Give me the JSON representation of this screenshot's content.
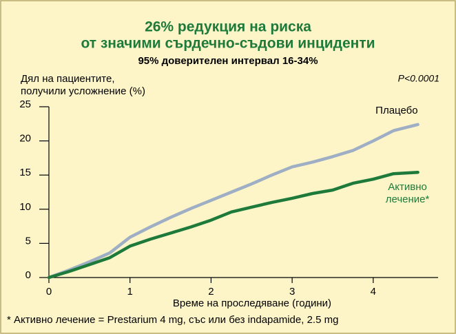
{
  "chart_data": {
    "type": "line",
    "title": "26% редукция на риска",
    "subtitle": "от значими сърдечно-съдови инциденти",
    "subtitle2": "95% доверителен интервал 16-34%",
    "y_label": "Дял на пациентите, получили усложнение (%)",
    "x_label": "Време на проследяване (години)",
    "annotation": "P<0.0001",
    "footnote": "* Активно лечение = Prestarium 4 mg, със или без indapamide, 2.5 mg",
    "x": [
      0,
      0.25,
      0.5,
      0.75,
      1.0,
      1.25,
      1.5,
      1.75,
      2.0,
      2.25,
      2.5,
      2.75,
      3.0,
      3.25,
      3.5,
      3.75,
      4.0,
      4.25,
      4.55
    ],
    "series": [
      {
        "name": "Плацебо",
        "color": "#9eaec4",
        "values": [
          0,
          1.1,
          2.3,
          3.6,
          5.9,
          7.4,
          8.8,
          10.1,
          11.3,
          12.5,
          13.7,
          15.0,
          16.2,
          16.9,
          17.7,
          18.6,
          20.0,
          21.5,
          22.4
        ]
      },
      {
        "name": "Активно лечение*",
        "color": "#1d7a3a",
        "values": [
          0,
          0.9,
          1.9,
          2.9,
          4.6,
          5.6,
          6.5,
          7.4,
          8.4,
          9.6,
          10.3,
          11.0,
          11.6,
          12.3,
          12.8,
          13.8,
          14.4,
          15.2,
          15.4
        ]
      }
    ],
    "xlim": [
      0,
      4.8
    ],
    "ylim": [
      0,
      25
    ],
    "xticks": [
      0,
      1,
      2,
      3,
      4
    ],
    "yticks": [
      0,
      5,
      10,
      15,
      20,
      25
    ],
    "grid": false
  }
}
